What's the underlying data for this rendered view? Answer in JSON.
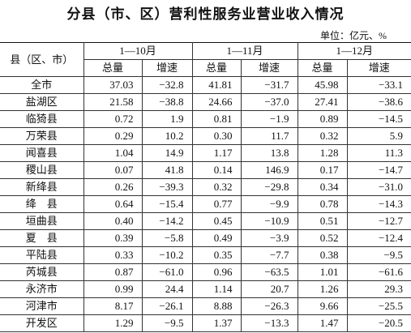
{
  "title": "分县（市、区）营利性服务业营业收入情况",
  "unit": "单位：亿元、%",
  "table": {
    "corner": "县（区、市）",
    "periods": [
      "1—10月",
      "1—11月",
      "1—12月"
    ],
    "subheaders": [
      "总量",
      "增速"
    ],
    "rows": [
      [
        "全市",
        "37.03",
        "−32.8",
        "41.81",
        "−31.7",
        "45.98",
        "−33.1"
      ],
      [
        "盐湖区",
        "21.58",
        "−38.8",
        "24.66",
        "−37.0",
        "27.41",
        "−38.6"
      ],
      [
        "临猗县",
        "0.72",
        "1.9",
        "0.81",
        "−1.9",
        "0.89",
        "−14.5"
      ],
      [
        "万荣县",
        "0.29",
        "10.2",
        "0.30",
        "11.7",
        "0.32",
        "5.9"
      ],
      [
        "闻喜县",
        "1.04",
        "14.9",
        "1.17",
        "13.8",
        "1.28",
        "11.3"
      ],
      [
        "稷山县",
        "0.07",
        "41.8",
        "0.14",
        "146.9",
        "0.17",
        "−14.7"
      ],
      [
        "新绛县",
        "0.26",
        "−39.3",
        "0.32",
        "−29.8",
        "0.34",
        "−31.0"
      ],
      [
        "绛　县",
        "0.64",
        "−15.4",
        "0.77",
        "−9.9",
        "0.78",
        "−14.3"
      ],
      [
        "垣曲县",
        "0.40",
        "−14.2",
        "0.45",
        "−10.9",
        "0.51",
        "−12.7"
      ],
      [
        "夏　县",
        "0.39",
        "−5.8",
        "0.49",
        "−3.9",
        "0.52",
        "−12.4"
      ],
      [
        "平陆县",
        "0.33",
        "−10.2",
        "0.35",
        "−7.7",
        "0.38",
        "−9.5"
      ],
      [
        "芮城县",
        "0.87",
        "−61.0",
        "0.96",
        "−63.5",
        "1.01",
        "−61.6"
      ],
      [
        "永济市",
        "0.99",
        "24.4",
        "1.14",
        "20.7",
        "1.26",
        "29.3"
      ],
      [
        "河津市",
        "8.17",
        "−26.1",
        "8.88",
        "−26.3",
        "9.66",
        "−25.5"
      ],
      [
        "开发区",
        "1.29",
        "−9.5",
        "1.37",
        "−13.3",
        "1.47",
        "−20.5"
      ]
    ]
  }
}
